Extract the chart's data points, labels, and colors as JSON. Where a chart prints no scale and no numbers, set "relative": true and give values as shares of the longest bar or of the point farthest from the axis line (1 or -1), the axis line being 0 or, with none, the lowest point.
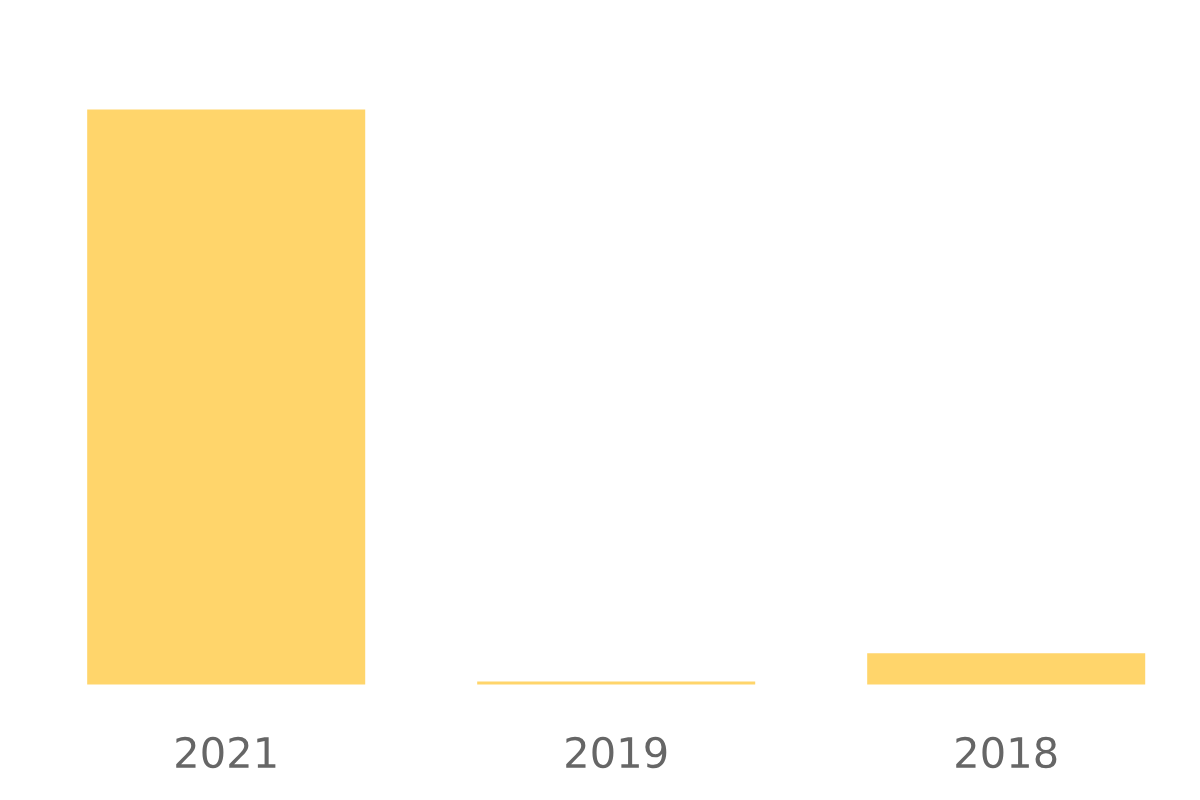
{
  "chart_data": {
    "type": "bar",
    "relative": true,
    "categories": [
      "2021",
      "2019",
      "2018"
    ],
    "values": [
      1,
      0.01,
      0.059
    ],
    "color": "#ffd56b",
    "grid": false
  }
}
